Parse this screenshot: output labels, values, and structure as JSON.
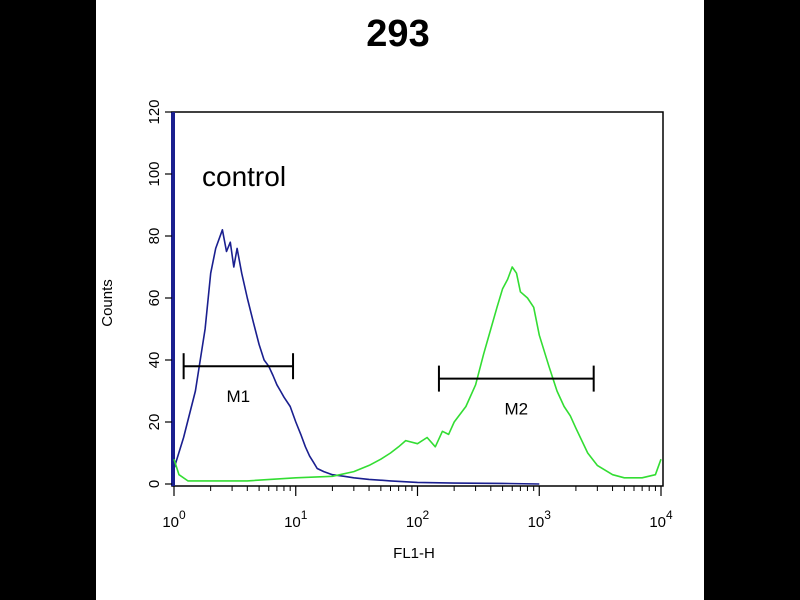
{
  "chart_data": {
    "type": "line",
    "title": "293",
    "xlabel": "FL1-H",
    "ylabel": "Counts",
    "x_scale": "log",
    "xlim": [
      1,
      10000
    ],
    "ylim": [
      0,
      120
    ],
    "x_ticks": [
      {
        "value": 1,
        "base": "10",
        "exp": "0"
      },
      {
        "value": 10,
        "base": "10",
        "exp": "1"
      },
      {
        "value": 100,
        "base": "10",
        "exp": "2"
      },
      {
        "value": 1000,
        "base": "10",
        "exp": "3"
      },
      {
        "value": 10000,
        "base": "10",
        "exp": "4"
      }
    ],
    "y_ticks": [
      "0",
      "20",
      "40",
      "60",
      "80",
      "100",
      "120"
    ],
    "annotation": "control",
    "series": [
      {
        "color": "#1a1f8f",
        "x": [
          1,
          1.2,
          1.5,
          1.8,
          2.0,
          2.2,
          2.5,
          2.7,
          2.9,
          3.1,
          3.3,
          3.6,
          4.0,
          4.5,
          5.0,
          5.5,
          6.0,
          6.5,
          7.0,
          7.5,
          8.0,
          9.0,
          10,
          11,
          12,
          13,
          14,
          15,
          17,
          20,
          25,
          30,
          40,
          60,
          100,
          200,
          500,
          1000
        ],
        "y": [
          5,
          15,
          30,
          50,
          68,
          76,
          82,
          75,
          78,
          70,
          76,
          68,
          60,
          52,
          45,
          40,
          38,
          35,
          32,
          30,
          28,
          25,
          20,
          16,
          12,
          9,
          7,
          5,
          4,
          3,
          2.5,
          2,
          1.5,
          1,
          0.5,
          0.3,
          0.2,
          0
        ]
      },
      {
        "color": "#33dd33",
        "x": [
          1,
          1.1,
          1.3,
          2,
          4,
          10,
          20,
          30,
          40,
          50,
          60,
          70,
          80,
          100,
          120,
          140,
          160,
          180,
          200,
          250,
          300,
          350,
          400,
          450,
          500,
          550,
          600,
          650,
          700,
          800,
          900,
          1000,
          1200,
          1400,
          1600,
          1800,
          2000,
          2500,
          3000,
          4000,
          5000,
          7000,
          9000,
          10000
        ],
        "y": [
          8,
          3,
          1,
          1,
          1,
          2,
          2.5,
          4,
          6,
          8,
          10,
          12,
          14,
          13,
          15,
          12,
          17,
          16,
          20,
          25,
          32,
          42,
          50,
          57,
          63,
          66,
          70,
          68,
          62,
          60,
          57,
          48,
          38,
          30,
          25,
          22,
          18,
          10,
          6,
          3,
          2,
          2,
          3,
          8
        ]
      }
    ],
    "gates": [
      {
        "label": "M1",
        "x_start": 1.2,
        "x_end": 9.5,
        "y": 38
      },
      {
        "label": "M2",
        "x_start": 150,
        "x_end": 2800,
        "y": 34
      }
    ]
  }
}
